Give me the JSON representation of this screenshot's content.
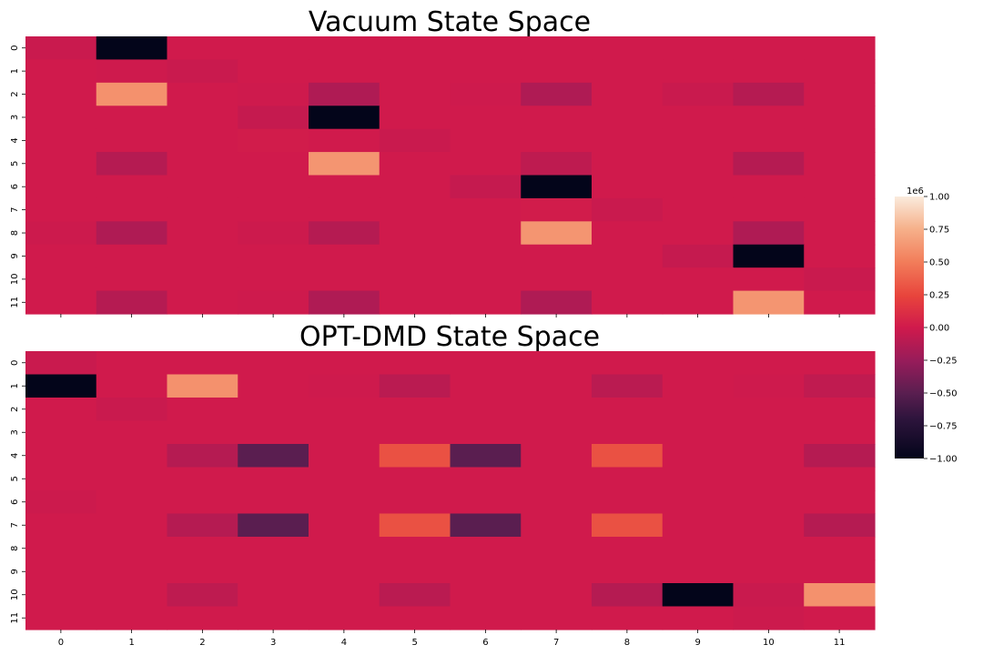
{
  "chart_data": {
    "colormap": "rocket",
    "colorbar": {
      "vmin": -1.0,
      "vmax": 1.0,
      "scale_label": "1e6",
      "ticks": [
        "1.00",
        "0.75",
        "0.50",
        "0.25",
        "0.00",
        "−0.25",
        "−0.50",
        "−0.75",
        "−1.00"
      ],
      "tick_values": [
        1.0,
        0.75,
        0.5,
        0.25,
        0.0,
        -0.25,
        -0.5,
        -0.75,
        -1.0
      ]
    },
    "charts": [
      {
        "type": "heatmap",
        "title": "Vacuum State Space",
        "row_labels": [
          "0",
          "1",
          "2",
          "3",
          "4",
          "5",
          "6",
          "7",
          "8",
          "9",
          "10",
          "11"
        ],
        "col_labels": [],
        "values": [
          [
            -0.03,
            -1.0,
            0.0,
            0.0,
            0.0,
            0.0,
            0.0,
            0.0,
            0.0,
            0.0,
            0.0,
            0.0
          ],
          [
            0.0,
            -0.01,
            -0.03,
            0.0,
            0.0,
            0.0,
            0.0,
            0.0,
            0.0,
            0.0,
            0.0,
            0.0
          ],
          [
            0.0,
            0.6,
            0.0,
            -0.01,
            -0.15,
            0.0,
            -0.01,
            -0.15,
            0.0,
            -0.03,
            -0.12,
            0.0
          ],
          [
            0.0,
            0.0,
            0.0,
            -0.05,
            -1.0,
            0.0,
            0.0,
            0.0,
            0.0,
            0.0,
            0.0,
            0.0
          ],
          [
            0.0,
            0.0,
            0.0,
            0.01,
            0.0,
            -0.03,
            0.0,
            0.0,
            0.0,
            0.0,
            0.0,
            0.0
          ],
          [
            0.0,
            -0.12,
            0.0,
            0.0,
            0.62,
            0.0,
            0.0,
            -0.08,
            0.0,
            0.0,
            -0.12,
            0.0
          ],
          [
            0.0,
            0.0,
            0.0,
            0.0,
            0.0,
            0.0,
            -0.05,
            -1.0,
            0.0,
            0.0,
            0.0,
            0.0
          ],
          [
            0.0,
            0.0,
            0.0,
            0.0,
            0.0,
            0.0,
            0.0,
            0.01,
            -0.03,
            0.0,
            0.0,
            0.0
          ],
          [
            -0.02,
            -0.15,
            0.0,
            -0.02,
            -0.12,
            0.0,
            0.0,
            0.62,
            0.0,
            0.0,
            -0.15,
            0.0
          ],
          [
            0.0,
            0.0,
            0.0,
            0.0,
            0.0,
            0.0,
            0.0,
            0.0,
            0.0,
            -0.05,
            -1.0,
            0.0
          ],
          [
            0.0,
            0.0,
            0.0,
            0.0,
            0.0,
            0.0,
            0.0,
            0.0,
            0.0,
            0.0,
            0.0,
            -0.03
          ],
          [
            0.0,
            -0.12,
            0.0,
            -0.01,
            -0.15,
            0.0,
            0.0,
            -0.15,
            0.0,
            0.0,
            0.62,
            0.0
          ]
        ]
      },
      {
        "type": "heatmap",
        "title": "OPT-DMD State Space",
        "row_labels": [
          "0",
          "1",
          "2",
          "3",
          "4",
          "5",
          "6",
          "7",
          "8",
          "9",
          "10",
          "11"
        ],
        "col_labels": [
          "0",
          "1",
          "2",
          "3",
          "4",
          "5",
          "6",
          "7",
          "8",
          "9",
          "10",
          "11"
        ],
        "values": [
          [
            -0.03,
            0.0,
            0.0,
            0.0,
            0.0,
            0.0,
            0.0,
            0.0,
            0.0,
            0.0,
            0.0,
            0.0
          ],
          [
            -1.0,
            0.0,
            0.6,
            0.0,
            -0.01,
            -0.1,
            0.0,
            0.0,
            -0.1,
            0.0,
            -0.01,
            -0.07
          ],
          [
            0.0,
            -0.03,
            0.0,
            0.0,
            0.0,
            0.0,
            0.0,
            0.0,
            0.0,
            0.0,
            0.0,
            0.0
          ],
          [
            0.0,
            0.0,
            0.0,
            0.0,
            0.0,
            0.0,
            0.0,
            0.0,
            0.0,
            0.0,
            0.0,
            0.0
          ],
          [
            0.0,
            0.0,
            -0.12,
            -0.5,
            0.0,
            0.3,
            -0.5,
            0.0,
            0.3,
            0.0,
            0.0,
            -0.12
          ],
          [
            0.0,
            0.0,
            0.0,
            0.0,
            0.0,
            0.0,
            0.0,
            0.0,
            0.0,
            0.0,
            0.0,
            0.0
          ],
          [
            -0.02,
            0.0,
            0.0,
            0.0,
            0.0,
            0.0,
            0.0,
            0.0,
            0.0,
            0.0,
            0.0,
            0.0
          ],
          [
            0.0,
            0.0,
            -0.12,
            -0.5,
            0.0,
            0.3,
            -0.5,
            0.0,
            0.3,
            0.0,
            0.0,
            -0.12
          ],
          [
            0.0,
            0.0,
            0.0,
            0.0,
            0.0,
            0.0,
            0.0,
            0.0,
            0.0,
            0.0,
            0.0,
            0.0
          ],
          [
            0.0,
            0.0,
            0.0,
            0.0,
            0.0,
            0.0,
            0.0,
            0.0,
            0.0,
            0.0,
            0.0,
            0.0
          ],
          [
            0.0,
            0.0,
            -0.08,
            0.0,
            0.0,
            -0.1,
            0.0,
            0.0,
            -0.12,
            -1.0,
            -0.03,
            0.6
          ],
          [
            0.0,
            0.0,
            0.0,
            0.0,
            0.0,
            0.0,
            0.0,
            0.0,
            0.0,
            0.0,
            -0.02,
            0.0
          ]
        ]
      }
    ]
  }
}
